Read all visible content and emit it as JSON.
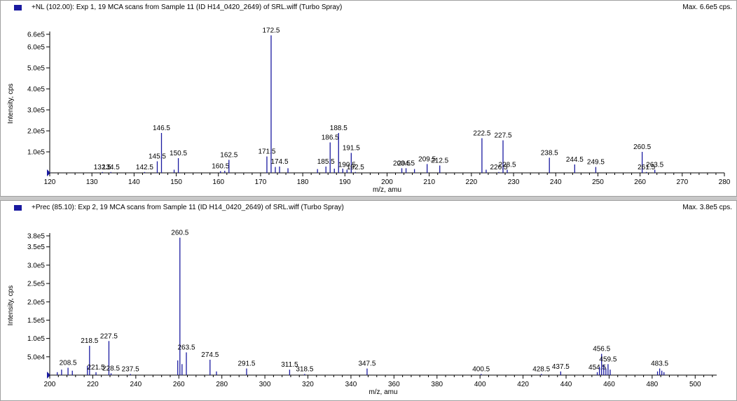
{
  "panels": [
    {
      "title": "+NL (102.00): Exp 1, 19 MCA scans from Sample 11 (ID H14_0420_2649) of SRL.wiff (Turbo Spray)",
      "max": "Max. 6.6e5 cps.",
      "icon": "spectrum-icon"
    },
    {
      "title": "+Prec (85.10): Exp 2, 19 MCA scans from Sample 11 (ID H14_0420_2649) of SRL.wiff (Turbo Spray)",
      "max": "Max. 3.8e5 cps.",
      "icon": "spectrum-icon"
    }
  ],
  "chart_data": [
    {
      "type": "bar",
      "title": "+NL (102.00): Exp 1, 19 MCA scans from Sample 11 (ID H14_0420_2649) of SRL.wiff (Turbo Spray)",
      "xlabel": "m/z, amu",
      "ylabel": "Intensity, cps",
      "xlim": [
        120,
        280
      ],
      "ylim": [
        0,
        660000
      ],
      "xticks": [
        120,
        130,
        140,
        150,
        160,
        170,
        180,
        190,
        200,
        210,
        220,
        230,
        240,
        250,
        260,
        270,
        280
      ],
      "yticks": [
        100000,
        200000,
        300000,
        400000,
        500000,
        600000,
        660000
      ],
      "ytick_labels": [
        "1.0e5",
        "2.0e5",
        "3.0e5",
        "4.0e5",
        "5.0e5",
        "6.0e5",
        "6.6e5"
      ],
      "color": "#1a1aa0",
      "peaks": [
        {
          "x": 132.5,
          "y": 4000,
          "label": "132.5"
        },
        {
          "x": 134.5,
          "y": 4000,
          "label": "134.5"
        },
        {
          "x": 142.5,
          "y": 4000,
          "label": "142.5"
        },
        {
          "x": 145.5,
          "y": 55000,
          "label": "145.5"
        },
        {
          "x": 146.5,
          "y": 190000,
          "label": "146.5"
        },
        {
          "x": 149.5,
          "y": 15000,
          "label": ""
        },
        {
          "x": 150.5,
          "y": 70000,
          "label": "150.5"
        },
        {
          "x": 160.5,
          "y": 8000,
          "label": "160.5"
        },
        {
          "x": 161.5,
          "y": 10000,
          "label": ""
        },
        {
          "x": 162.5,
          "y": 62000,
          "label": "162.5"
        },
        {
          "x": 171.5,
          "y": 78000,
          "label": "171.5"
        },
        {
          "x": 172.5,
          "y": 655000,
          "label": "172.5"
        },
        {
          "x": 173.5,
          "y": 28000,
          "label": ""
        },
        {
          "x": 174.5,
          "y": 30000,
          "label": "174.5"
        },
        {
          "x": 176.5,
          "y": 22000,
          "label": ""
        },
        {
          "x": 183.5,
          "y": 18000,
          "label": ""
        },
        {
          "x": 185.5,
          "y": 30000,
          "label": "185.5"
        },
        {
          "x": 186.5,
          "y": 145000,
          "label": "186.5"
        },
        {
          "x": 187.5,
          "y": 20000,
          "label": ""
        },
        {
          "x": 188.5,
          "y": 190000,
          "label": "188.5"
        },
        {
          "x": 189.5,
          "y": 20000,
          "label": ""
        },
        {
          "x": 190.5,
          "y": 15000,
          "label": "190.5"
        },
        {
          "x": 191.5,
          "y": 95000,
          "label": "191.5"
        },
        {
          "x": 192.5,
          "y": 4000,
          "label": "192.5"
        },
        {
          "x": 203.5,
          "y": 22000,
          "label": "203.5"
        },
        {
          "x": 204.5,
          "y": 22000,
          "label": "204.5"
        },
        {
          "x": 206.5,
          "y": 18000,
          "label": ""
        },
        {
          "x": 209.5,
          "y": 42000,
          "label": "209.5"
        },
        {
          "x": 212.5,
          "y": 35000,
          "label": "212.5"
        },
        {
          "x": 222.5,
          "y": 165000,
          "label": "222.5"
        },
        {
          "x": 223.5,
          "y": 15000,
          "label": ""
        },
        {
          "x": 226.5,
          "y": 4000,
          "label": "226.5"
        },
        {
          "x": 227.5,
          "y": 155000,
          "label": "227.5"
        },
        {
          "x": 228.5,
          "y": 15000,
          "label": "228.5"
        },
        {
          "x": 238.5,
          "y": 72000,
          "label": "238.5"
        },
        {
          "x": 244.5,
          "y": 40000,
          "label": "244.5"
        },
        {
          "x": 249.5,
          "y": 28000,
          "label": "249.5"
        },
        {
          "x": 260.5,
          "y": 100000,
          "label": "260.5"
        },
        {
          "x": 261.5,
          "y": 4000,
          "label": "261.5"
        },
        {
          "x": 263.5,
          "y": 15000,
          "label": "263.5"
        }
      ]
    },
    {
      "type": "bar",
      "title": "+Prec (85.10): Exp 2, 19 MCA scans from Sample 11 (ID H14_0420_2649) of SRL.wiff (Turbo Spray)",
      "xlabel": "m/z, amu",
      "ylabel": "Intensity, cps",
      "xlim": [
        200,
        510
      ],
      "ylim": [
        0,
        380000
      ],
      "xticks": [
        200,
        220,
        240,
        260,
        280,
        300,
        320,
        340,
        360,
        380,
        400,
        420,
        440,
        460,
        480,
        500
      ],
      "yticks": [
        50000,
        100000,
        150000,
        200000,
        250000,
        300000,
        350000,
        380000
      ],
      "ytick_labels": [
        "5.0e4",
        "1.0e5",
        "1.5e5",
        "2.0e5",
        "2.5e5",
        "3.0e5",
        "3.5e5",
        "3.8e5"
      ],
      "color": "#1a1aa0",
      "peaks": [
        {
          "x": 203.5,
          "y": 8000,
          "label": ""
        },
        {
          "x": 205.5,
          "y": 15000,
          "label": ""
        },
        {
          "x": 208.5,
          "y": 20000,
          "label": "208.5"
        },
        {
          "x": 210.5,
          "y": 12000,
          "label": ""
        },
        {
          "x": 217.5,
          "y": 25000,
          "label": ""
        },
        {
          "x": 218.5,
          "y": 80000,
          "label": "218.5"
        },
        {
          "x": 221.5,
          "y": 8000,
          "label": "221.5"
        },
        {
          "x": 227.5,
          "y": 93000,
          "label": "227.5"
        },
        {
          "x": 228.5,
          "y": 5000,
          "label": "228.5"
        },
        {
          "x": 237.5,
          "y": 3000,
          "label": "237.5"
        },
        {
          "x": 259.5,
          "y": 40000,
          "label": ""
        },
        {
          "x": 260.5,
          "y": 375000,
          "label": "260.5"
        },
        {
          "x": 261.5,
          "y": 30000,
          "label": ""
        },
        {
          "x": 263.5,
          "y": 62000,
          "label": "263.5"
        },
        {
          "x": 274.5,
          "y": 42000,
          "label": "274.5"
        },
        {
          "x": 277.5,
          "y": 10000,
          "label": ""
        },
        {
          "x": 291.5,
          "y": 18000,
          "label": "291.5"
        },
        {
          "x": 311.5,
          "y": 15000,
          "label": "311.5"
        },
        {
          "x": 318.5,
          "y": 3000,
          "label": "318.5"
        },
        {
          "x": 347.5,
          "y": 18000,
          "label": "347.5"
        },
        {
          "x": 400.5,
          "y": 3000,
          "label": "400.5"
        },
        {
          "x": 428.5,
          "y": 3000,
          "label": "428.5"
        },
        {
          "x": 437.5,
          "y": 10000,
          "label": "437.5"
        },
        {
          "x": 454.5,
          "y": 8000,
          "label": "454.5"
        },
        {
          "x": 455.5,
          "y": 22000,
          "label": ""
        },
        {
          "x": 456.5,
          "y": 58000,
          "label": "456.5"
        },
        {
          "x": 457.5,
          "y": 28000,
          "label": ""
        },
        {
          "x": 458.5,
          "y": 18000,
          "label": ""
        },
        {
          "x": 459.5,
          "y": 30000,
          "label": "459.5"
        },
        {
          "x": 460.5,
          "y": 15000,
          "label": ""
        },
        {
          "x": 482.5,
          "y": 10000,
          "label": ""
        },
        {
          "x": 483.5,
          "y": 18000,
          "label": "483.5"
        },
        {
          "x": 484.5,
          "y": 12000,
          "label": ""
        },
        {
          "x": 485.5,
          "y": 8000,
          "label": ""
        }
      ]
    }
  ]
}
